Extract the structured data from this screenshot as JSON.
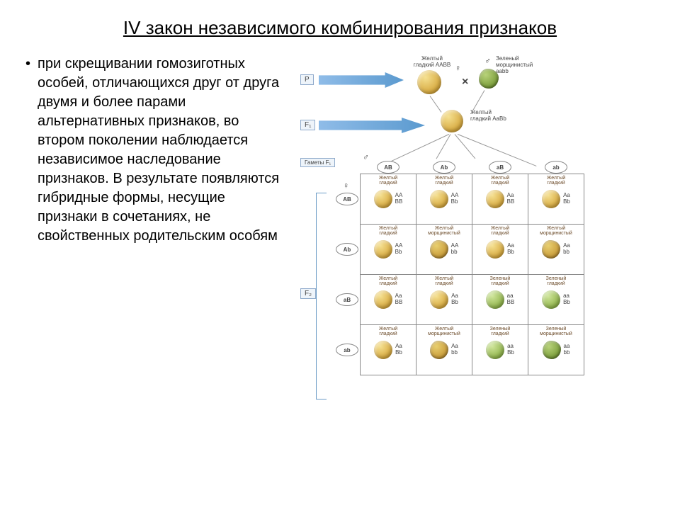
{
  "title": "IV закон независимого комбинирования признаков",
  "bullet_text": "при скрещивании гомозиготных особей, отличающихся друг от друга двумя и более парами альтернативных признаков, во втором поколении наблюдается независимое наследование признаков.  В результате появляются гибридные формы, несущие признаки в сочетаниях, не свойственных родительским особям",
  "gen_labels": {
    "P": "P",
    "F1": "F₁",
    "F2": "F₂",
    "gametes": "Гаметы F₁"
  },
  "parents": {
    "left": {
      "phen_l1": "Желтый",
      "phen_l2": "гладкий",
      "geno": "AABB",
      "sex": "♀",
      "pea": "smooth-yellow"
    },
    "right": {
      "phen_l1": "Зеленый",
      "phen_l2": "морщинистый",
      "geno": "aabb",
      "sex": "♂",
      "pea": "wrinkled-green"
    }
  },
  "f1": {
    "phen_l1": "Желтый",
    "phen_l2": "гладкий",
    "geno": "AaBb",
    "pea": "smooth-yellow"
  },
  "gametes": [
    "AB",
    "Ab",
    "aB",
    "ab"
  ],
  "sex_male": "♂",
  "sex_female": "♀",
  "phen_map": {
    "smooth-yellow": [
      "Желтый",
      "гладкий"
    ],
    "wrinkled-yellow": [
      "Желтый",
      "морщинистый"
    ],
    "smooth-green": [
      "Зеленый",
      "гладкий"
    ],
    "wrinkled-green": [
      "Зеленый",
      "морщинистый"
    ]
  },
  "punnett": [
    [
      {
        "p": "smooth-yellow",
        "g1": "AA",
        "g2": "BB"
      },
      {
        "p": "smooth-yellow",
        "g1": "AA",
        "g2": "Bb"
      },
      {
        "p": "smooth-yellow",
        "g1": "Aa",
        "g2": "BB"
      },
      {
        "p": "smooth-yellow",
        "g1": "Aa",
        "g2": "Bb"
      }
    ],
    [
      {
        "p": "smooth-yellow",
        "g1": "AA",
        "g2": "Bb"
      },
      {
        "p": "wrinkled-yellow",
        "g1": "AA",
        "g2": "bb"
      },
      {
        "p": "smooth-yellow",
        "g1": "Aa",
        "g2": "Bb"
      },
      {
        "p": "wrinkled-yellow",
        "g1": "Aa",
        "g2": "bb"
      }
    ],
    [
      {
        "p": "smooth-yellow",
        "g1": "Aa",
        "g2": "BB"
      },
      {
        "p": "smooth-yellow",
        "g1": "Aa",
        "g2": "Bb"
      },
      {
        "p": "smooth-green",
        "g1": "aa",
        "g2": "BB"
      },
      {
        "p": "smooth-green",
        "g1": "aa",
        "g2": "Bb"
      }
    ],
    [
      {
        "p": "smooth-yellow",
        "g1": "Aa",
        "g2": "Bb"
      },
      {
        "p": "wrinkled-yellow",
        "g1": "Aa",
        "g2": "bb"
      },
      {
        "p": "smooth-green",
        "g1": "aa",
        "g2": "Bb"
      },
      {
        "p": "wrinkled-green",
        "g1": "aa",
        "g2": "bb"
      }
    ]
  ],
  "pea_sizes": {
    "parent": 34,
    "f1": 32,
    "cell": 26
  },
  "colors": {
    "arrow": "#5b9acf",
    "grid": "#888888"
  }
}
